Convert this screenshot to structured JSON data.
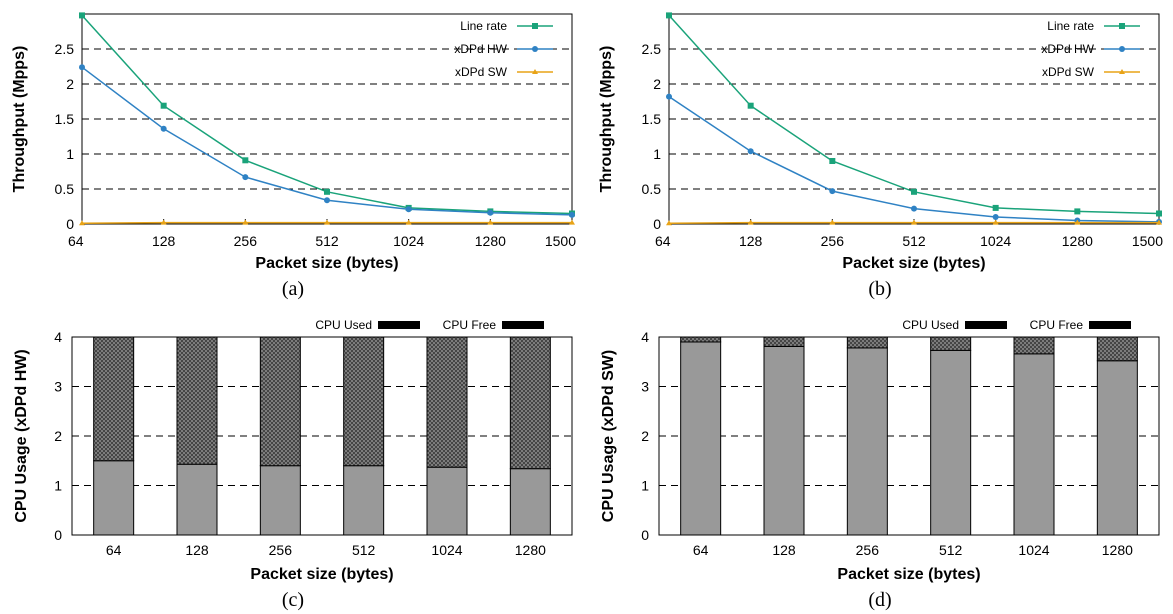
{
  "chart_data": [
    {
      "id": "a",
      "type": "line",
      "caption": "(a)",
      "xlabel": "Packet size (bytes)",
      "ylabel": "Throughput (Mpps)",
      "categories": [
        "64",
        "128",
        "256",
        "512",
        "1024",
        "1280",
        "1500"
      ],
      "ylim": [
        0,
        3
      ],
      "yticks": [
        "0",
        "0.5",
        "1",
        "1.5",
        "2",
        "2.5"
      ],
      "ytick_values": [
        0,
        0.5,
        1,
        1.5,
        2,
        2.5
      ],
      "grid": "horizontal dashed",
      "legend_position": "top-right",
      "series": [
        {
          "name": "Line rate",
          "color": "#1aa37a",
          "marker": "square",
          "values": [
            2.98,
            1.69,
            0.91,
            0.46,
            0.23,
            0.18,
            0.15
          ]
        },
        {
          "name": "xDPd HW",
          "color": "#2f82c4",
          "marker": "circle",
          "values": [
            2.24,
            1.36,
            0.67,
            0.34,
            0.21,
            0.16,
            0.13
          ]
        },
        {
          "name": "xDPd SW",
          "color": "#e8a317",
          "marker": "triangle",
          "values": [
            0.01,
            0.02,
            0.02,
            0.02,
            0.02,
            0.02,
            0.02
          ]
        }
      ]
    },
    {
      "id": "b",
      "type": "line",
      "caption": "(b)",
      "xlabel": "Packet size (bytes)",
      "ylabel": "Throughput (Mpps)",
      "categories": [
        "64",
        "128",
        "256",
        "512",
        "1024",
        "1280",
        "1500"
      ],
      "ylim": [
        0,
        3
      ],
      "yticks": [
        "0",
        "0.5",
        "1",
        "1.5",
        "2",
        "2.5"
      ],
      "ytick_values": [
        0,
        0.5,
        1,
        1.5,
        2,
        2.5
      ],
      "grid": "horizontal dashed",
      "legend_position": "top-right",
      "series": [
        {
          "name": "Line rate",
          "color": "#1aa37a",
          "marker": "square",
          "values": [
            2.98,
            1.69,
            0.9,
            0.46,
            0.23,
            0.18,
            0.15
          ]
        },
        {
          "name": "xDPd HW",
          "color": "#2f82c4",
          "marker": "circle",
          "values": [
            1.82,
            1.04,
            0.47,
            0.22,
            0.1,
            0.05,
            0.03
          ]
        },
        {
          "name": "xDPd SW",
          "color": "#e8a317",
          "marker": "triangle",
          "values": [
            0.01,
            0.02,
            0.02,
            0.02,
            0.02,
            0.02,
            0.02
          ]
        }
      ]
    },
    {
      "id": "c",
      "type": "bar",
      "stacked": true,
      "caption": "(c)",
      "xlabel": "Packet size (bytes)",
      "ylabel": "CPU Usage (xDPd HW)",
      "categories": [
        "64",
        "128",
        "256",
        "512",
        "1024",
        "1280"
      ],
      "ylim": [
        0,
        4
      ],
      "yticks": [
        "0",
        "1",
        "2",
        "3",
        "4"
      ],
      "ytick_values": [
        0,
        1,
        2,
        3,
        4
      ],
      "grid": "horizontal dashed",
      "legend_position": "top-right",
      "series": [
        {
          "name": "CPU Used",
          "color": "#999999",
          "values": [
            1.5,
            1.43,
            1.4,
            1.4,
            1.37,
            1.34
          ]
        },
        {
          "name": "CPU Free",
          "color": "#555555",
          "pattern": "crosshatch",
          "values": [
            2.5,
            2.57,
            2.6,
            2.6,
            2.63,
            2.66
          ]
        }
      ]
    },
    {
      "id": "d",
      "type": "bar",
      "stacked": true,
      "caption": "(d)",
      "xlabel": "Packet size (bytes)",
      "ylabel": "CPU Usage (xDPd SW)",
      "categories": [
        "64",
        "128",
        "256",
        "512",
        "1024",
        "1280"
      ],
      "ylim": [
        0,
        4
      ],
      "yticks": [
        "0",
        "1",
        "2",
        "3",
        "4"
      ],
      "ytick_values": [
        0,
        1,
        2,
        3,
        4
      ],
      "grid": "horizontal dashed",
      "legend_position": "top-right",
      "series": [
        {
          "name": "CPU Used",
          "color": "#999999",
          "values": [
            3.9,
            3.81,
            3.78,
            3.73,
            3.66,
            3.52
          ]
        },
        {
          "name": "CPU Free",
          "color": "#555555",
          "pattern": "crosshatch",
          "values": [
            0.1,
            0.19,
            0.22,
            0.27,
            0.34,
            0.48
          ]
        }
      ]
    }
  ]
}
